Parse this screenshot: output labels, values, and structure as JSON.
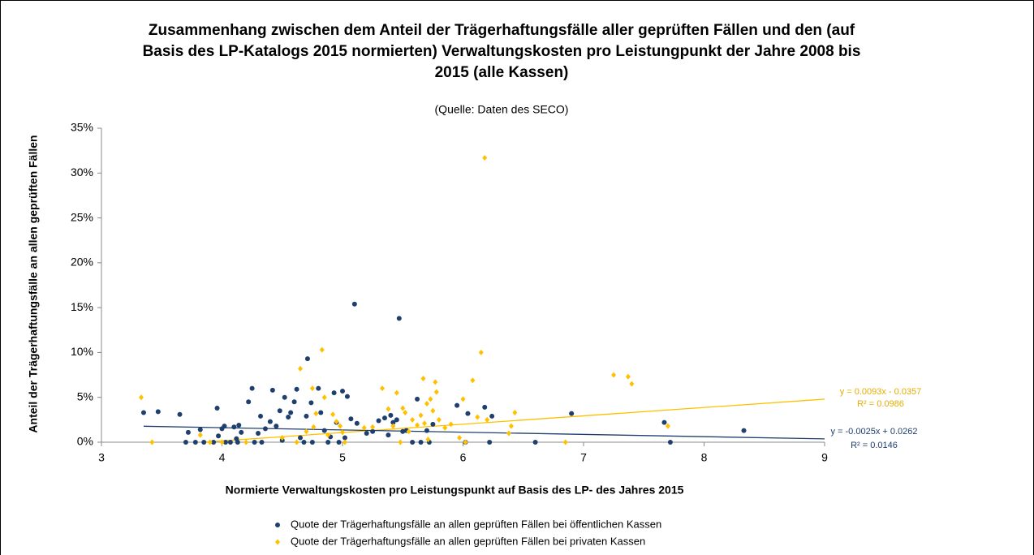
{
  "chart_data": {
    "type": "scatter",
    "title": [
      "Zusammenhang zwischen dem Anteil der Trägerhaftungsfälle aller geprüften Fällen und den (auf",
      "Basis des LP-Katalogs 2015 normierten) Verwaltungskosten pro Leistungpunkt der Jahre 2008 bis",
      "2015 (alle Kassen)"
    ],
    "subtitle": "(Quelle: Daten des SECO)",
    "x_label": "Normierte Verwaltungskosten pro Leistungspunkt auf Basis des LP- des Jahres 2015",
    "y_label": "Anteil der Trägerhaftungsfälle an allen geprüften Fällen",
    "xlim": [
      3,
      9
    ],
    "xticks": [
      3,
      4,
      5,
      6,
      7,
      8,
      9
    ],
    "ylim": [
      0,
      35
    ],
    "yticks": [
      {
        "value": 0,
        "label": "0%"
      },
      {
        "value": 5,
        "label": "5%"
      },
      {
        "value": 10,
        "label": "10%"
      },
      {
        "value": 15,
        "label": "15%"
      },
      {
        "value": 20,
        "label": "20%"
      },
      {
        "value": 25,
        "label": "25%"
      },
      {
        "value": 30,
        "label": "30%"
      },
      {
        "value": 35,
        "label": "35%"
      }
    ],
    "grid": false,
    "series": [
      {
        "name": "Quote der Trägerhaftungsfälle an allen geprüften Fällen bei öffentlichen Kassen",
        "color": "#1f3f6e",
        "marker": "circle",
        "x": [
          3.35,
          3.47,
          3.65,
          3.7,
          3.72,
          3.78,
          3.82,
          3.85,
          3.93,
          3.96,
          3.97,
          4.0,
          4.02,
          4.03,
          4.07,
          4.1,
          4.12,
          4.13,
          4.14,
          4.16,
          4.22,
          4.25,
          4.27,
          4.3,
          4.32,
          4.33,
          4.36,
          4.4,
          4.42,
          4.45,
          4.48,
          4.5,
          4.52,
          4.55,
          4.57,
          4.6,
          4.62,
          4.65,
          4.68,
          4.7,
          4.71,
          4.74,
          4.75,
          4.8,
          4.82,
          4.85,
          4.88,
          4.9,
          4.93,
          4.95,
          4.97,
          5.0,
          5.02,
          5.04,
          5.07,
          5.1,
          5.12,
          5.2,
          5.25,
          5.3,
          5.35,
          5.38,
          5.4,
          5.42,
          5.45,
          5.47,
          5.5,
          5.53,
          5.58,
          5.62,
          5.65,
          5.7,
          5.72,
          5.75,
          5.95,
          6.02,
          6.04,
          6.18,
          6.22,
          6.24,
          6.6,
          6.9,
          7.67,
          7.72,
          8.33
        ],
        "values": [
          3.3,
          3.4,
          3.1,
          0,
          1.1,
          0,
          1.4,
          0,
          0,
          3.8,
          0.7,
          1.5,
          1.8,
          0,
          0,
          1.7,
          0.4,
          0,
          1.9,
          1.1,
          4.5,
          6.0,
          0,
          1.0,
          2.9,
          0,
          1.5,
          2.3,
          5.8,
          1.8,
          3.5,
          0.2,
          5.0,
          2.8,
          3.3,
          4.5,
          5.9,
          0.5,
          0,
          2.9,
          9.3,
          4.4,
          0,
          6.0,
          3.3,
          1.3,
          0,
          0.6,
          5.5,
          2.2,
          0,
          5.7,
          0.5,
          5.1,
          2.6,
          15.4,
          2.1,
          1.0,
          1.2,
          2.4,
          2.7,
          0.8,
          3.0,
          2.2,
          2.5,
          13.8,
          1.2,
          1.3,
          0,
          4.8,
          0,
          1.3,
          0,
          2.0,
          4.1,
          0,
          3.2,
          3.9,
          0,
          2.9,
          0,
          3.2,
          2.2,
          0,
          1.3
        ]
      },
      {
        "name": "Quote der Trägerhaftungsfälle an allen geprüften Fällen bei privaten Kassen",
        "color": "#ffc000",
        "marker": "diamond",
        "x": [
          3.33,
          3.42,
          3.82,
          3.9,
          4.0,
          4.2,
          4.5,
          4.62,
          4.65,
          4.7,
          4.75,
          4.76,
          4.78,
          4.83,
          4.85,
          4.88,
          4.92,
          4.95,
          4.98,
          5.0,
          5.02,
          5.18,
          5.25,
          5.33,
          5.38,
          5.42,
          5.45,
          5.48,
          5.5,
          5.52,
          5.55,
          5.58,
          5.62,
          5.65,
          5.67,
          5.68,
          5.7,
          5.71,
          5.73,
          5.75,
          5.77,
          5.78,
          5.8,
          5.85,
          5.9,
          5.97,
          6.0,
          6.02,
          6.08,
          6.12,
          6.15,
          6.18,
          6.2,
          6.4,
          6.43,
          6.38,
          6.85,
          7.25,
          7.37,
          7.4,
          7.7
        ],
        "values": [
          5.0,
          0,
          0.8,
          0,
          0,
          0,
          0.5,
          0,
          8.2,
          1.2,
          6.0,
          1.7,
          3.2,
          10.3,
          5.0,
          0.8,
          3.1,
          2.3,
          1.8,
          1.1,
          0,
          1.6,
          1.7,
          6.0,
          3.7,
          1.8,
          5.5,
          0,
          3.8,
          3.3,
          1.2,
          2.5,
          1.9,
          3.0,
          7.1,
          2.1,
          4.3,
          0.3,
          4.8,
          3.5,
          6.7,
          5.6,
          2.5,
          1.6,
          2.0,
          0.5,
          4.8,
          0,
          6.9,
          2.8,
          10.0,
          31.7,
          2.5,
          1.8,
          3.3,
          1.0,
          0,
          7.5,
          7.3,
          6.5,
          1.8
        ]
      }
    ],
    "trendlines": [
      {
        "series": 1,
        "x": [
          3.84,
          9
        ],
        "y": [
          0,
          4.8
        ],
        "equation": "y = 0.0093x - 0.0357",
        "r2": "R² = 0.0986"
      },
      {
        "series": 0,
        "x": [
          3.35,
          9
        ],
        "y": [
          1.78,
          0.37
        ],
        "equation": "y = -0.0025x + 0.0262",
        "r2": "R² = 0.0146"
      }
    ],
    "legend": "bottom"
  }
}
